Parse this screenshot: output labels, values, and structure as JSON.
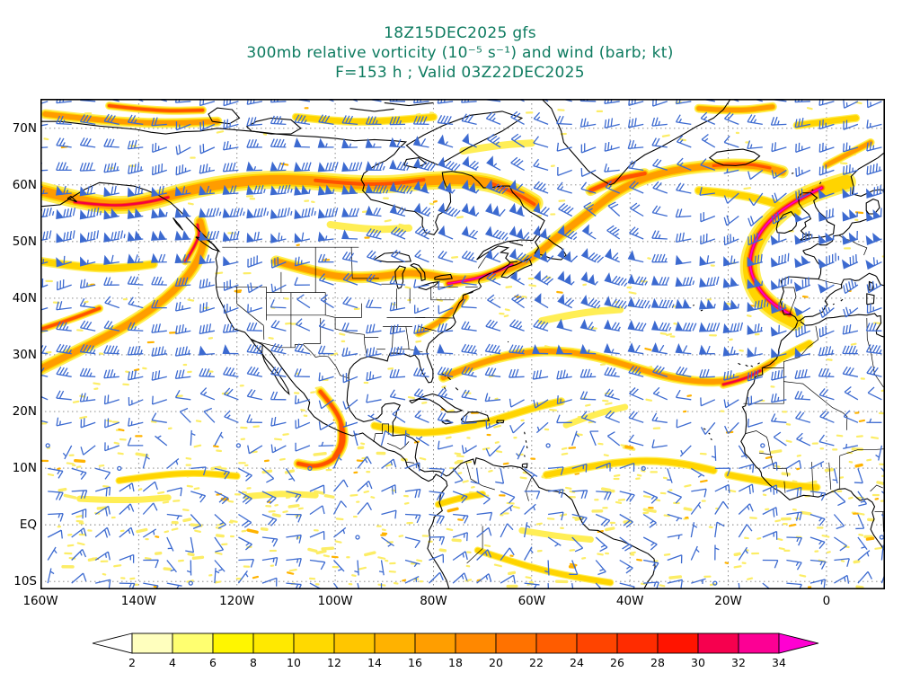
{
  "style": {
    "title_color": "#0e7b60",
    "axis_color": "#000000",
    "barb_color": "#3c6ad0",
    "coast_color": "#000000",
    "border_color": "#000000",
    "grid_color": "#7d7d7d",
    "frame_color": "#000000",
    "background": "#ffffff"
  },
  "chart_data": {
    "type": "heatmap",
    "title": "18Z15DEC2025 gfs",
    "subtitle": "300mb relative vorticity (10⁻⁵ s⁻¹) and wind (barb; kt)",
    "forecast_line": "F=153 h ; Valid 03Z22DEC2025",
    "model": "gfs",
    "model_run": "18Z15DEC2025",
    "level": "300mb",
    "field": "relative vorticity",
    "field_units": "10⁻⁵ s⁻¹",
    "overlay": "wind (barb; kt)",
    "forecast_hour": 153,
    "valid_time": "03Z22DEC2025",
    "map": {
      "lon_range": [
        -160,
        11.9
      ],
      "lat_range": [
        75.2,
        -11.4
      ]
    },
    "axes": {
      "lon_ticks_deg": [
        -160,
        -140,
        -120,
        -100,
        -80,
        -60,
        -40,
        -20,
        0
      ],
      "lon_tick_labels": [
        "160W",
        "140W",
        "120W",
        "100W",
        "80W",
        "60W",
        "40W",
        "20W",
        "0"
      ],
      "lat_ticks_deg": [
        70,
        60,
        50,
        40,
        30,
        20,
        10,
        0,
        -10
      ],
      "lat_tick_labels": [
        "70N",
        "60N",
        "50N",
        "40N",
        "30N",
        "20N",
        "10N",
        "EQ",
        "10S"
      ],
      "grid_deg": [
        20,
        10
      ]
    },
    "colorbar": {
      "tick_labels": [
        "2",
        "4",
        "6",
        "8",
        "10",
        "12",
        "14",
        "16",
        "18",
        "20",
        "22",
        "24",
        "26",
        "28",
        "30",
        "32",
        "34"
      ],
      "segment_colors": [
        "#ffffbe",
        "#ffff70",
        "#fff600",
        "#ffe900",
        "#ffd900",
        "#ffc600",
        "#ffb200",
        "#ff9e00",
        "#ff8800",
        "#ff7200",
        "#ff5c00",
        "#ff4400",
        "#ff2c00",
        "#ff1400",
        "#f6004e",
        "#fc0094"
      ],
      "under_color": "#ffffff",
      "over_color": "#ff00d2"
    },
    "vorticity": {
      "units": "10⁻⁵ s⁻¹",
      "fill_levels": [
        {
          "t": 2,
          "c": "#ffee55",
          "wf": 1
        },
        {
          "t": 8,
          "c": "#ffd400",
          "wf": 0.72
        },
        {
          "t": 14,
          "c": "#ff9c00",
          "wf": 0.52
        },
        {
          "t": 20,
          "c": "#ff5200",
          "wf": 0.36
        },
        {
          "t": 26,
          "c": "#f40041",
          "wf": 0.22
        },
        {
          "t": 31,
          "c": "#ff00c8",
          "wf": 0.12
        }
      ],
      "background_speckle_range": [
        2,
        6
      ],
      "streaks": [
        {
          "peak": 18,
          "w": 20,
          "pts": [
            [
              -160,
              59
            ],
            [
              -151,
              57
            ],
            [
              -144,
              56.3
            ],
            [
              -138,
              57
            ],
            [
              -131,
              58.8
            ],
            [
              -123,
              60.2
            ],
            [
              -114,
              61
            ],
            [
              -105,
              60.8
            ],
            [
              -96,
              60.1
            ],
            [
              -88,
              60.1
            ],
            [
              -81,
              60.8
            ],
            [
              -74,
              61
            ],
            [
              -68,
              60.3
            ],
            [
              -63,
              58.6
            ],
            [
              -59.5,
              56.8
            ]
          ]
        },
        {
          "peak": 26,
          "w": 11,
          "pts": [
            [
              -153,
              57
            ],
            [
              -146,
              56.2
            ],
            [
              -139,
              56.8
            ],
            [
              -134,
              57.8
            ]
          ]
        },
        {
          "peak": 24,
          "w": 11,
          "pts": [
            [
              -104,
              60.8
            ],
            [
              -96,
              60.1
            ],
            [
              -88,
              60.2
            ],
            [
              -82,
              60.9
            ]
          ]
        },
        {
          "peak": 25,
          "w": 10,
          "pts": [
            [
              -68,
              60.2
            ],
            [
              -63,
              58.5
            ],
            [
              -59.5,
              56.6
            ]
          ]
        },
        {
          "peak": 16,
          "w": 14,
          "pts": [
            [
              -160,
              27.5
            ],
            [
              -153,
              30.5
            ],
            [
              -146,
              33.5
            ],
            [
              -139,
              37
            ],
            [
              -133,
              41
            ],
            [
              -128.5,
              45.5
            ],
            [
              -126.5,
              50
            ],
            [
              -127.5,
              53.5
            ]
          ]
        },
        {
          "peak": 25,
          "w": 9,
          "pts": [
            [
              -160,
              34.5
            ],
            [
              -154,
              36.2
            ],
            [
              -148,
              38.2
            ]
          ]
        },
        {
          "peak": 26,
          "w": 9,
          "pts": [
            [
              -130.5,
              46.5
            ],
            [
              -127.5,
              50.5
            ],
            [
              -128,
              53
            ]
          ]
        },
        {
          "peak": 8,
          "w": 10,
          "pts": [
            [
              -160,
              46.5
            ],
            [
              -152,
              45.5
            ],
            [
              -144,
              45.2
            ],
            [
              -137,
              46
            ]
          ]
        },
        {
          "peak": 16,
          "w": 13,
          "pts": [
            [
              -112,
              46.5
            ],
            [
              -105,
              44.8
            ],
            [
              -98,
              43.6
            ],
            [
              -91,
              43.8
            ],
            [
              -85,
              44.6
            ],
            [
              -80,
              44
            ],
            [
              -75,
              43.2
            ],
            [
              -70,
              43.6
            ],
            [
              -65,
              45
            ],
            [
              -60,
              47
            ],
            [
              -56.5,
              49.5
            ]
          ]
        },
        {
          "peak": 33,
          "w": 11,
          "pts": [
            [
              -77,
              42.6
            ],
            [
              -72.5,
              43.2
            ],
            [
              -68,
              44.4
            ],
            [
              -64,
              45.9
            ]
          ]
        },
        {
          "peak": 18,
          "w": 9,
          "pts": [
            [
              -83,
              33.8
            ],
            [
              -79,
              35.6
            ],
            [
              -76,
              37.8
            ],
            [
              -73.5,
              40.2
            ]
          ]
        },
        {
          "peak": 18,
          "w": 14,
          "pts": [
            [
              -56,
              50
            ],
            [
              -51.5,
              53
            ],
            [
              -47,
              56
            ],
            [
              -42.5,
              59
            ],
            [
              -37,
              61.3
            ],
            [
              -31,
              62.6
            ],
            [
              -25,
              63.3
            ],
            [
              -19,
              63.6
            ],
            [
              -13.5,
              63.4
            ],
            [
              -9,
              62.3
            ]
          ]
        },
        {
          "peak": 25,
          "w": 9,
          "pts": [
            [
              -23,
              63.4
            ],
            [
              -17,
              63.9
            ],
            [
              -11.5,
              63
            ]
          ]
        },
        {
          "peak": 22,
          "w": 12,
          "pts": [
            [
              -48,
              59
            ],
            [
              -43,
              61
            ],
            [
              -37,
              62
            ]
          ]
        },
        {
          "peak": 34,
          "w": 15,
          "pts": [
            [
              -1,
              59.5
            ],
            [
              -7,
              57
            ],
            [
              -12,
              53.5
            ],
            [
              -15,
              49.5
            ],
            [
              -15.8,
              45.5
            ],
            [
              -14,
              41.8
            ],
            [
              -11,
              39
            ],
            [
              -7.5,
              37.2
            ]
          ]
        },
        {
          "peak": 10,
          "w": 22,
          "pts": [
            [
              4,
              60.5
            ],
            [
              -4,
              58.5
            ],
            [
              -10,
              55
            ],
            [
              -14,
              51
            ],
            [
              -16,
              46
            ],
            [
              -14.5,
              41
            ],
            [
              -11,
              38
            ],
            [
              -6.5,
              36
            ]
          ]
        },
        {
          "peak": 12,
          "w": 10,
          "pts": [
            [
              -26,
              59
            ],
            [
              -19,
              58.5
            ],
            [
              -12,
              57.2
            ],
            [
              -6,
              55.2
            ]
          ]
        },
        {
          "peak": 14,
          "w": 11,
          "pts": [
            [
              -78,
              26
            ],
            [
              -71,
              28.5
            ],
            [
              -63,
              30.3
            ],
            [
              -55,
              30.8
            ],
            [
              -47,
              29.8
            ],
            [
              -40,
              28
            ],
            [
              -33,
              26.2
            ],
            [
              -26,
              25.2
            ],
            [
              -20,
              25.3
            ],
            [
              -15,
              26.6
            ],
            [
              -11,
              28.6
            ]
          ]
        },
        {
          "peak": 30,
          "w": 10,
          "pts": [
            [
              -21,
              24.8
            ],
            [
              -17,
              25.6
            ],
            [
              -13.5,
              27.2
            ]
          ]
        },
        {
          "peak": 12,
          "w": 9,
          "pts": [
            [
              -11,
              28.6
            ],
            [
              -7,
              30.5
            ],
            [
              -3.5,
              32
            ]
          ]
        },
        {
          "peak": 20,
          "w": 11,
          "pts": [
            [
              -103,
              23.5
            ],
            [
              -100,
              20.5
            ],
            [
              -98.3,
              17
            ],
            [
              -98.3,
              13.8
            ],
            [
              -100.5,
              11.3
            ],
            [
              -104,
              10.2
            ],
            [
              -107.5,
              10.8
            ]
          ]
        },
        {
          "peak": 24,
          "w": 8,
          "pts": [
            [
              -99,
              18
            ],
            [
              -98.6,
              14.5
            ],
            [
              -100.3,
              12
            ]
          ]
        },
        {
          "peak": 8,
          "w": 9,
          "pts": [
            [
              -92,
              17.5
            ],
            [
              -85,
              16.2
            ],
            [
              -78,
              16.4
            ],
            [
              -71,
              17.6
            ],
            [
              -65,
              19.2
            ],
            [
              -59,
              20.8
            ],
            [
              -54,
              21.8
            ]
          ]
        },
        {
          "peak": 11,
          "w": 9,
          "pts": [
            [
              -57,
              8.8
            ],
            [
              -50,
              10
            ],
            [
              -43,
              11
            ],
            [
              -36,
              11.4
            ],
            [
              -29,
              10.8
            ],
            [
              -23,
              9.6
            ]
          ]
        },
        {
          "peak": 13,
          "w": 9,
          "pts": [
            [
              -20,
              8.8
            ],
            [
              -14,
              7.8
            ],
            [
              -8,
              7
            ],
            [
              -2,
              6.6
            ]
          ]
        },
        {
          "peak": 10,
          "w": 8,
          "pts": [
            [
              -144,
              7.8
            ],
            [
              -136,
              8.8
            ],
            [
              -128,
              9.2
            ],
            [
              -120,
              8.6
            ]
          ]
        },
        {
          "peak": 6,
          "w": 7,
          "pts": [
            [
              -152,
              4.6
            ],
            [
              -143,
              4.2
            ],
            [
              -134,
              4.8
            ]
          ]
        },
        {
          "peak": 6,
          "w": 7,
          "pts": [
            [
              -118,
              5
            ],
            [
              -111,
              5.6
            ],
            [
              -104,
              5.2
            ]
          ]
        },
        {
          "peak": 9,
          "w": 8,
          "pts": [
            [
              -71,
              -4.5
            ],
            [
              -64,
              -6.5
            ],
            [
              -57,
              -8.2
            ],
            [
              -50,
              -9.4
            ],
            [
              -44,
              -10.2
            ]
          ]
        },
        {
          "peak": 5,
          "w": 7,
          "pts": [
            [
              -62,
              -1
            ],
            [
              -55,
              -2
            ],
            [
              -48,
              -2.6
            ]
          ]
        },
        {
          "peak": 13,
          "w": 8,
          "pts": [
            [
              -79,
              3.6
            ],
            [
              -74.5,
              4.8
            ],
            [
              -70,
              5.4
            ]
          ]
        },
        {
          "peak": 6,
          "w": 7,
          "pts": [
            [
              -53,
              17.6
            ],
            [
              -47,
              19.6
            ],
            [
              -41,
              20.8
            ]
          ]
        },
        {
          "peak": 6,
          "w": 8,
          "pts": [
            [
              -101,
              53
            ],
            [
              -93,
              52
            ],
            [
              -85,
              52.4
            ]
          ]
        },
        {
          "peak": 14,
          "w": 11,
          "pts": [
            [
              -159,
              72.5
            ],
            [
              -148,
              71.4
            ],
            [
              -136,
              70.8
            ],
            [
              -124,
              71.2
            ]
          ]
        },
        {
          "peak": 22,
          "w": 9,
          "pts": [
            [
              -146,
              74
            ],
            [
              -136,
              73
            ],
            [
              -127,
              73.2
            ]
          ]
        },
        {
          "peak": 8,
          "w": 9,
          "pts": [
            [
              -108,
              72
            ],
            [
              -98,
              71
            ],
            [
              -88,
              71.4
            ],
            [
              -80,
              72
            ]
          ]
        },
        {
          "peak": 14,
          "w": 9,
          "pts": [
            [
              0,
              63.5
            ],
            [
              4.5,
              65.5
            ],
            [
              9,
              67.5
            ]
          ]
        },
        {
          "peak": 10,
          "w": 9,
          "pts": [
            [
              -6,
              70.5
            ],
            [
              0,
              71.2
            ],
            [
              6,
              71.8
            ]
          ]
        },
        {
          "peak": 6,
          "w": 8,
          "pts": [
            [
              -74,
              66
            ],
            [
              -67,
              67
            ],
            [
              -60,
              67.4
            ]
          ]
        },
        {
          "peak": 16,
          "w": 10,
          "pts": [
            [
              -26,
              73.5
            ],
            [
              -18,
              73
            ],
            [
              -11,
              73.8
            ]
          ]
        },
        {
          "peak": 5,
          "w": 8,
          "pts": [
            [
              -58,
              36
            ],
            [
              -50,
              37.5
            ],
            [
              -42,
              38
            ]
          ]
        }
      ]
    },
    "wind": {
      "units": "kt",
      "pennant_kt": 50,
      "full_barb_kt": 10,
      "half_barb_kt": 5,
      "grid_spacing_deg": [
        4.85,
        4.05
      ],
      "typical_jet_max_kt": 105
    }
  }
}
